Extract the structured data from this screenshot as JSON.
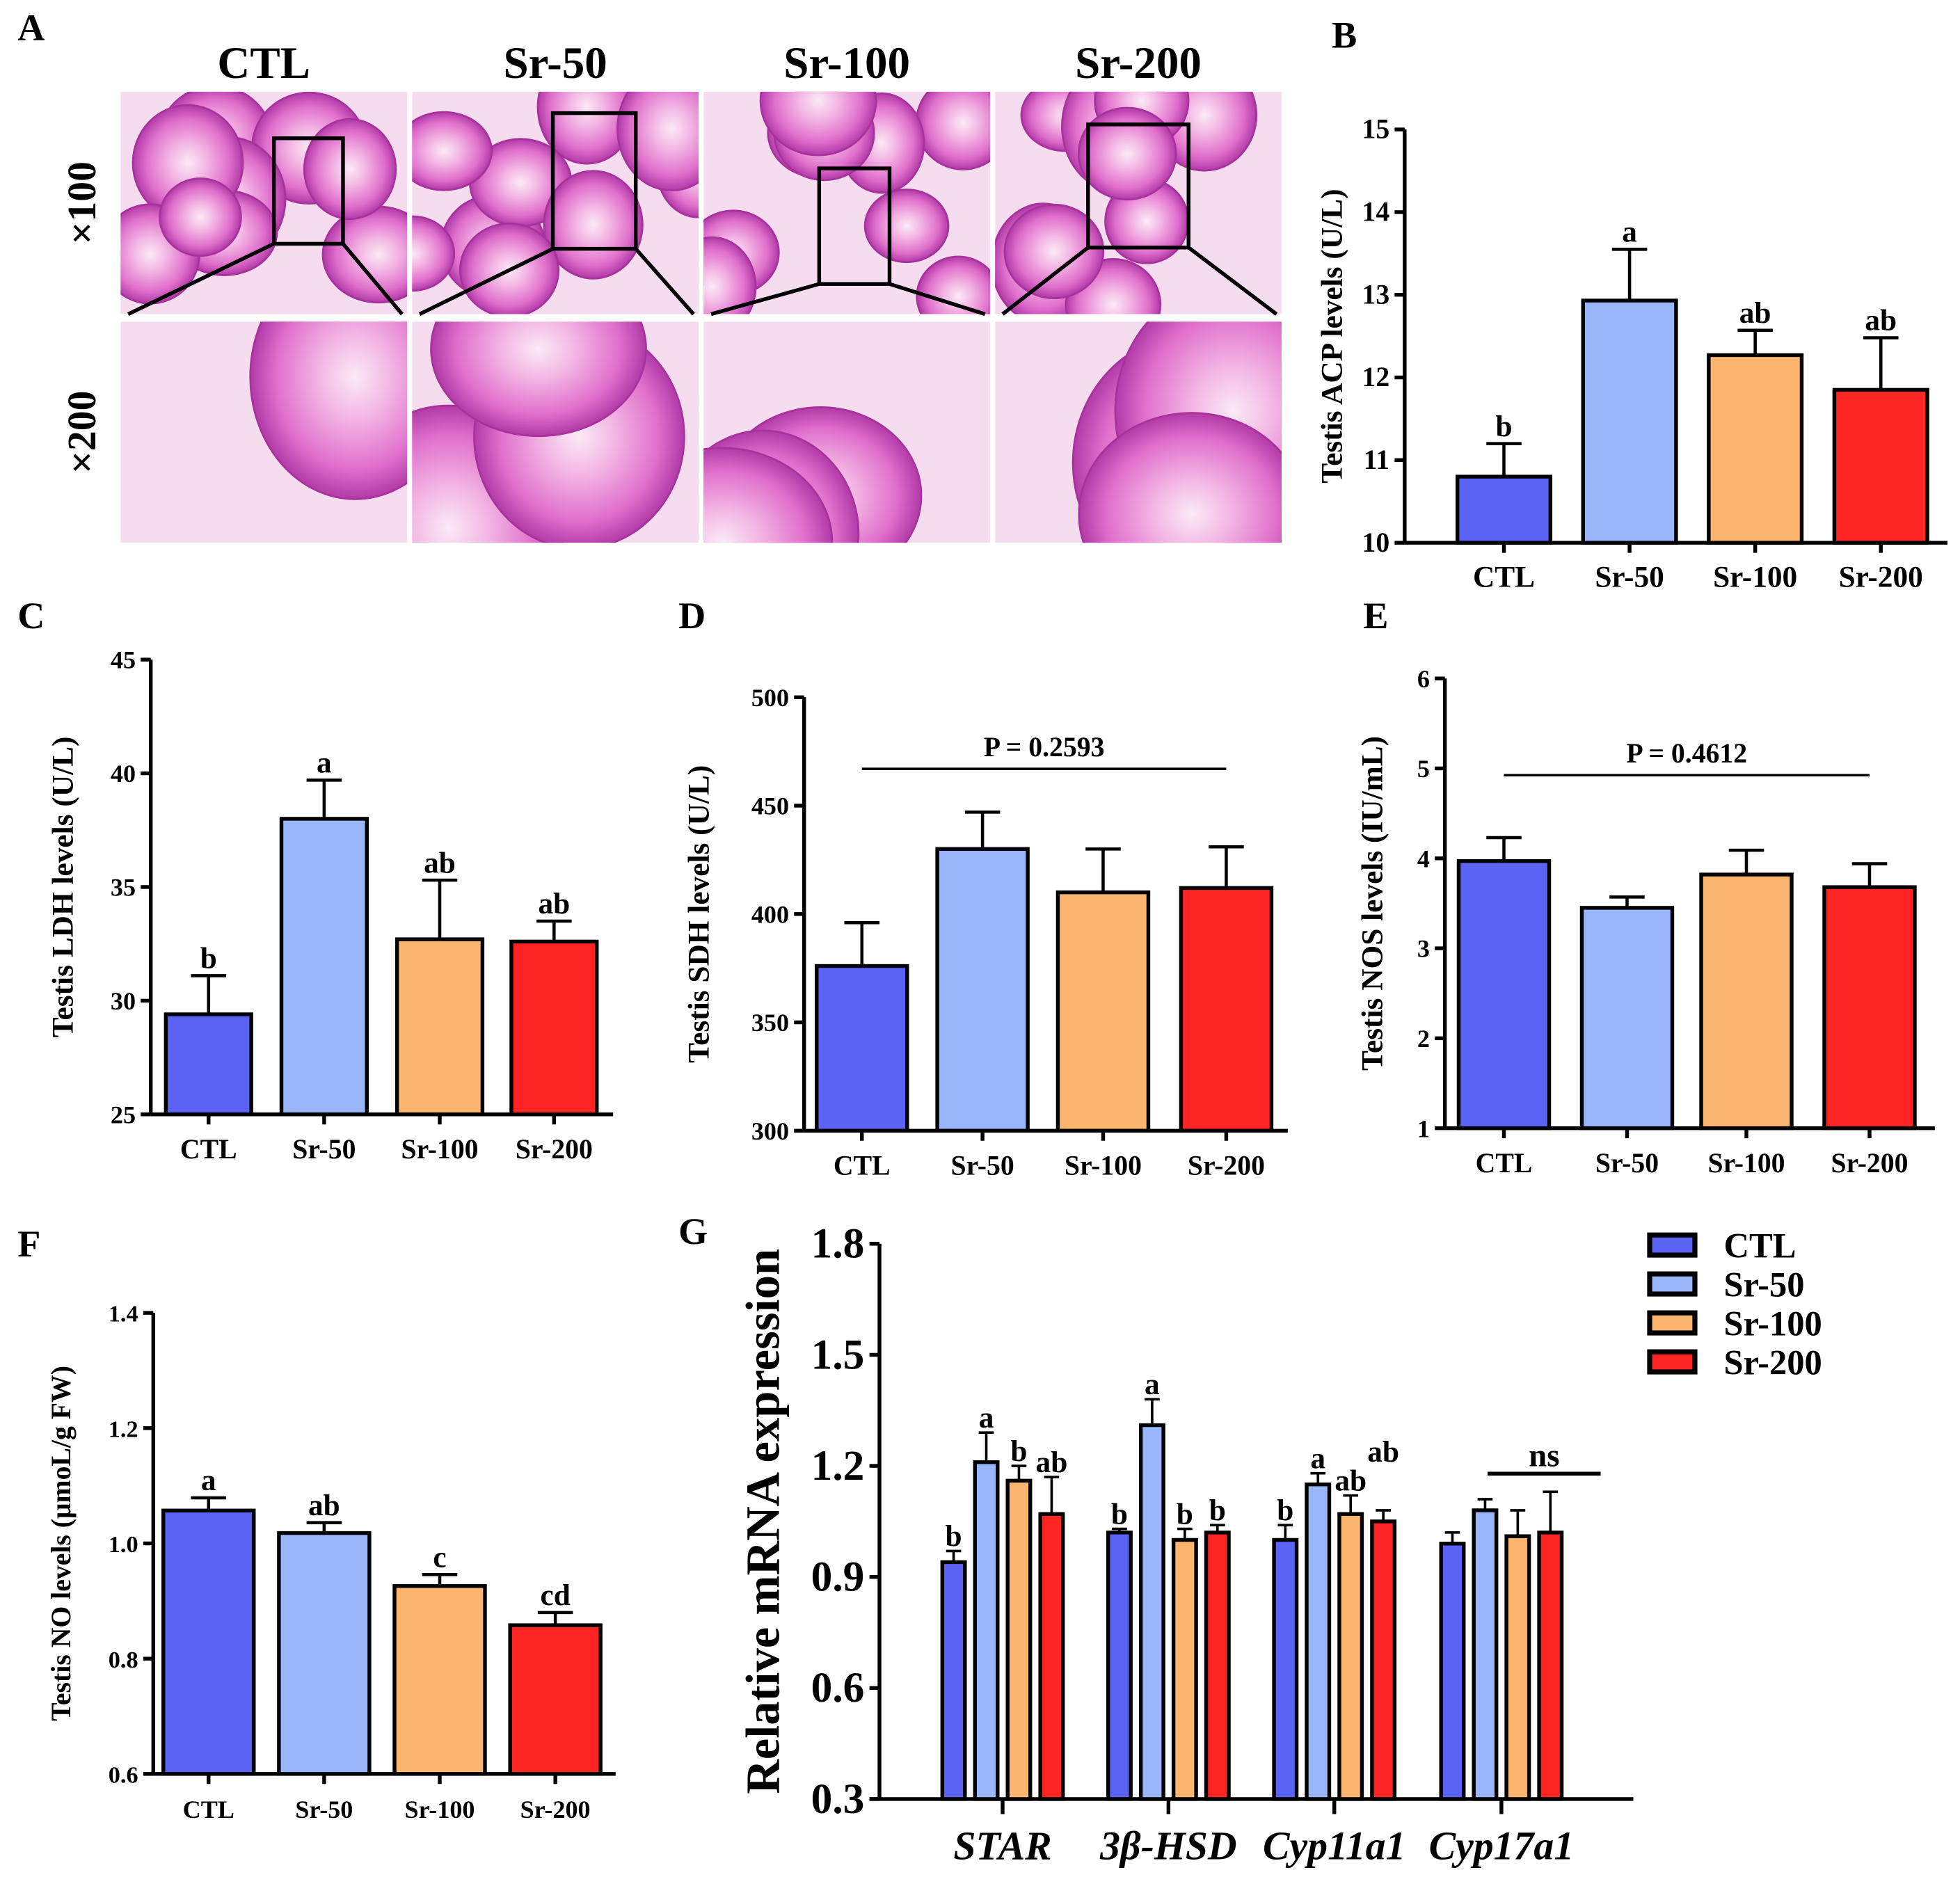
{
  "colors": {
    "CTL": "#5b63f5",
    "Sr-50": "#99b6fb",
    "Sr-100": "#fbb56f",
    "Sr-200": "#fd2424"
  },
  "histology": {
    "panel_label": "A",
    "columns": [
      "CTL",
      "Sr-50",
      "Sr-100",
      "Sr-200"
    ],
    "rows": [
      "×100",
      "×200"
    ]
  },
  "chart_data": [
    {
      "id": "B",
      "panel_label": "B",
      "type": "bar",
      "ylabel": "Testis ACP levels (U/L)",
      "categories": [
        "CTL",
        "Sr-50",
        "Sr-100",
        "Sr-200"
      ],
      "values": [
        10.8,
        12.93,
        12.27,
        11.85
      ],
      "errors": [
        0.4,
        0.62,
        0.3,
        0.63
      ],
      "letters": [
        "b",
        "a",
        "ab",
        "ab"
      ],
      "ylim": [
        10,
        15
      ],
      "yticks": [
        "10",
        "11",
        "12",
        "13",
        "14",
        "15"
      ]
    },
    {
      "id": "C",
      "panel_label": "C",
      "type": "bar",
      "ylabel": "Testis LDH levels (U/L)",
      "categories": [
        "CTL",
        "Sr-50",
        "Sr-100",
        "Sr-200"
      ],
      "values": [
        29.4,
        38.0,
        32.7,
        32.6
      ],
      "errors": [
        1.7,
        1.7,
        2.6,
        0.9
      ],
      "letters": [
        "b",
        "a",
        "ab",
        "ab"
      ],
      "ylim": [
        25,
        45
      ],
      "yticks": [
        "25",
        "30",
        "35",
        "40",
        "45"
      ]
    },
    {
      "id": "D",
      "panel_label": "D",
      "type": "bar",
      "ylabel": "Testis SDH levels (U/L)",
      "categories": [
        "CTL",
        "Sr-50",
        "Sr-100",
        "Sr-200"
      ],
      "values": [
        376,
        430,
        410,
        412
      ],
      "errors": [
        20,
        17,
        20,
        19
      ],
      "letters": [
        "",
        "",
        "",
        ""
      ],
      "annotation": "P = 0.2593",
      "ylim": [
        300,
        500
      ],
      "yticks": [
        "300",
        "350",
        "400",
        "450",
        "500"
      ]
    },
    {
      "id": "E",
      "panel_label": "E",
      "type": "bar",
      "ylabel": "Testis NOS levels (IU/mL)",
      "categories": [
        "CTL",
        "Sr-50",
        "Sr-100",
        "Sr-200"
      ],
      "values": [
        3.97,
        3.45,
        3.82,
        3.68
      ],
      "errors": [
        0.26,
        0.12,
        0.27,
        0.26
      ],
      "letters": [
        "",
        "",
        "",
        ""
      ],
      "annotation": "P = 0.4612",
      "ylim": [
        1,
        6
      ],
      "yticks": [
        "1",
        "2",
        "3",
        "4",
        "5",
        "6"
      ]
    },
    {
      "id": "F",
      "panel_label": "F",
      "type": "bar",
      "ylabel": "Testis NO levels (μmoL/g FW)",
      "categories": [
        "CTL",
        "Sr-50",
        "Sr-100",
        "Sr-200"
      ],
      "values": [
        1.057,
        1.018,
        0.926,
        0.858
      ],
      "errors": [
        0.022,
        0.018,
        0.02,
        0.022
      ],
      "letters": [
        "a",
        "ab",
        "c",
        "cd"
      ],
      "ylim": [
        0.6,
        1.4
      ],
      "yticks": [
        "0.6",
        "0.8",
        "1.0",
        "1.2",
        "1.4"
      ]
    },
    {
      "id": "G",
      "panel_label": "G",
      "type": "bar",
      "ylabel": "Relative mRNA expression",
      "categories": [
        "STAR",
        "3β-HSD",
        "Cyp11a1",
        "Cyp17a1"
      ],
      "legend": [
        "CTL",
        "Sr-50",
        "Sr-100",
        "Sr-200"
      ],
      "legend_position": "top-right",
      "ylim": [
        0.3,
        1.8
      ],
      "yticks": [
        "0.3",
        "0.6",
        "0.9",
        "1.2",
        "1.5",
        "1.8"
      ],
      "series": [
        {
          "name": "CTL",
          "values": [
            0.94,
            1.02,
            1.0,
            0.99
          ],
          "errors": [
            0.03,
            0.01,
            0.04,
            0.03
          ],
          "letters": [
            "b",
            "b",
            "b",
            ""
          ]
        },
        {
          "name": "Sr-50",
          "values": [
            1.21,
            1.31,
            1.15,
            1.08
          ],
          "errors": [
            0.08,
            0.07,
            0.03,
            0.03
          ],
          "letters": [
            "a",
            "a",
            "a",
            ""
          ]
        },
        {
          "name": "Sr-100",
          "values": [
            1.16,
            1.0,
            1.07,
            1.01
          ],
          "errors": [
            0.04,
            0.03,
            0.05,
            0.07
          ],
          "letters": [
            "b",
            "b",
            "ab",
            ""
          ]
        },
        {
          "name": "Sr-200",
          "values": [
            1.07,
            1.02,
            1.05,
            1.02
          ],
          "errors": [
            0.1,
            0.02,
            0.03,
            0.11
          ],
          "letters": [
            "ab",
            "b",
            "ab",
            ""
          ]
        }
      ],
      "annotation": "ns"
    }
  ]
}
